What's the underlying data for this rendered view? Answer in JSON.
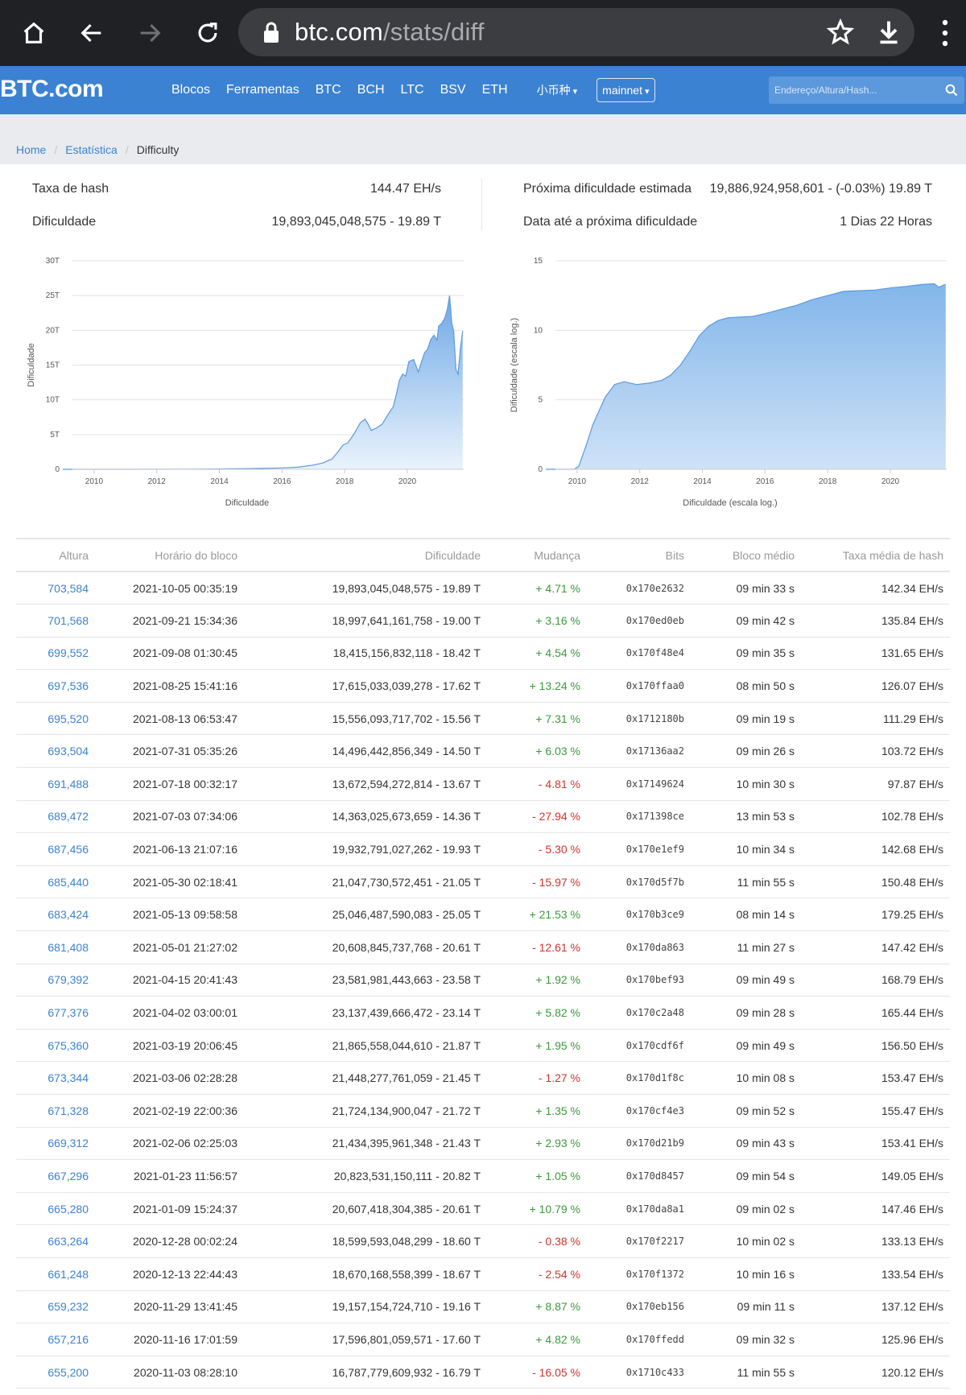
{
  "browser": {
    "url_host": "btc.com",
    "url_path": "/stats/diff"
  },
  "site": {
    "logo": "BTC.com",
    "nav": [
      "Blocos",
      "Ferramentas",
      "BTC",
      "BCH",
      "LTC",
      "BSV",
      "ETH"
    ],
    "coins_dropdown": "小币种",
    "network": "mainnet",
    "search_placeholder": "Endereço/Altura/Hash..."
  },
  "breadcrumb": {
    "home": "Home",
    "stats": "Estatística",
    "current": "Difficulty"
  },
  "stats": {
    "hashrate_label": "Taxa de hash",
    "hashrate_value": "144.47 EH/s",
    "difficulty_label": "Dificuldade",
    "difficulty_value": "19,893,045,048,575 - 19.89 T",
    "next_label": "Próxima dificuldade estimada",
    "next_value": "19,886,924,958,601 - (-0.03%) 19.89 T",
    "time_label": "Data até a próxima dificuldade",
    "time_value": "1 Dias 22 Horas"
  },
  "chart_data": [
    {
      "type": "area",
      "xlabel": "Dificuldade",
      "ylabel": "Dificuldade",
      "x_ticks": [
        "2010",
        "2012",
        "2014",
        "2016",
        "2018",
        "2020"
      ],
      "y_ticks": [
        "0",
        "5T",
        "10T",
        "15T",
        "20T",
        "25T",
        "30T"
      ],
      "ylim": [
        0,
        30
      ],
      "x_range": [
        2009.0,
        2021.8
      ],
      "grid": true,
      "series": [
        {
          "x": [
            2009.0,
            2011.0,
            2013.0,
            2014.0,
            2015.0,
            2016.0,
            2016.5,
            2017.0,
            2017.3,
            2017.6,
            2017.8,
            2017.95,
            2018.1,
            2018.3,
            2018.5,
            2018.65,
            2018.75,
            2018.85,
            2019.0,
            2019.2,
            2019.4,
            2019.55,
            2019.65,
            2019.75,
            2019.85,
            2019.95,
            2020.05,
            2020.2,
            2020.35,
            2020.45,
            2020.55,
            2020.65,
            2020.75,
            2020.85,
            2020.95,
            2021.0,
            2021.1,
            2021.2,
            2021.28,
            2021.35,
            2021.42,
            2021.48,
            2021.55,
            2021.62,
            2021.7,
            2021.77
          ],
          "y": [
            0,
            0,
            0.01,
            0.05,
            0.1,
            0.2,
            0.3,
            0.6,
            0.9,
            1.5,
            2.6,
            3.5,
            3.8,
            5.1,
            6.7,
            7.2,
            6.5,
            5.6,
            5.9,
            6.5,
            8.0,
            9.0,
            10.8,
            12.8,
            13.7,
            13.4,
            15.5,
            15.8,
            14.0,
            15.4,
            16.8,
            17.3,
            18.7,
            19.3,
            18.6,
            20.6,
            21.0,
            21.8,
            23.1,
            25.0,
            21.0,
            19.9,
            14.4,
            13.7,
            17.6,
            19.9
          ]
        }
      ]
    },
    {
      "type": "area",
      "xlabel": "Dificuldade (escala log.)",
      "ylabel": "Dificuldade (escala log.)",
      "x_ticks": [
        "2010",
        "2012",
        "2014",
        "2016",
        "2018",
        "2020"
      ],
      "y_ticks": [
        "0",
        "5",
        "10",
        "15"
      ],
      "ylim": [
        0,
        15
      ],
      "x_range": [
        2009.0,
        2021.8
      ],
      "grid": true,
      "series": [
        {
          "x": [
            2009.0,
            2009.9,
            2010.05,
            2010.3,
            2010.5,
            2010.7,
            2010.9,
            2011.2,
            2011.5,
            2011.9,
            2012.3,
            2012.7,
            2013.0,
            2013.3,
            2013.6,
            2013.9,
            2014.2,
            2014.5,
            2014.8,
            2015.2,
            2015.6,
            2016.0,
            2016.5,
            2017.0,
            2017.5,
            2018.0,
            2018.5,
            2019.0,
            2019.5,
            2020.0,
            2020.5,
            2021.0,
            2021.4,
            2021.55,
            2021.7,
            2021.77
          ],
          "y": [
            0,
            0,
            0.2,
            1.8,
            3.2,
            4.2,
            5.2,
            6.1,
            6.3,
            6.1,
            6.2,
            6.4,
            6.8,
            7.5,
            8.5,
            9.6,
            10.3,
            10.7,
            10.9,
            10.95,
            11.0,
            11.2,
            11.5,
            11.8,
            12.2,
            12.5,
            12.8,
            12.85,
            12.9,
            13.05,
            13.15,
            13.3,
            13.35,
            13.1,
            13.25,
            13.3
          ]
        }
      ]
    }
  ],
  "table": {
    "headers": [
      "Altura",
      "Horário do bloco",
      "Dificuldade",
      "Mudança",
      "Bits",
      "Bloco médio",
      "Taxa média de hash"
    ],
    "rows": [
      [
        "703,584",
        "2021-10-05 00:35:19",
        "19,893,045,048,575 - 19.89 T",
        "+ 4.71 %",
        "0x170e2632",
        "09 min 33 s",
        "142.34 EH/s"
      ],
      [
        "701,568",
        "2021-09-21 15:34:36",
        "18,997,641,161,758 - 19.00 T",
        "+ 3.16 %",
        "0x170ed0eb",
        "09 min 42 s",
        "135.84 EH/s"
      ],
      [
        "699,552",
        "2021-09-08 01:30:45",
        "18,415,156,832,118 - 18.42 T",
        "+ 4.54 %",
        "0x170f48e4",
        "09 min 35 s",
        "131.65 EH/s"
      ],
      [
        "697,536",
        "2021-08-25 15:41:16",
        "17,615,033,039,278 - 17.62 T",
        "+ 13.24 %",
        "0x170ffaa0",
        "08 min 50 s",
        "126.07 EH/s"
      ],
      [
        "695,520",
        "2021-08-13 06:53:47",
        "15,556,093,717,702 - 15.56 T",
        "+ 7.31 %",
        "0x1712180b",
        "09 min 19 s",
        "111.29 EH/s"
      ],
      [
        "693,504",
        "2021-07-31 05:35:26",
        "14,496,442,856,349 - 14.50 T",
        "+ 6.03 %",
        "0x17136aa2",
        "09 min 26 s",
        "103.72 EH/s"
      ],
      [
        "691,488",
        "2021-07-18 00:32:17",
        "13,672,594,272,814 - 13.67 T",
        "- 4.81 %",
        "0x17149624",
        "10 min 30 s",
        "97.87 EH/s"
      ],
      [
        "689,472",
        "2021-07-03 07:34:06",
        "14,363,025,673,659 - 14.36 T",
        "- 27.94 %",
        "0x171398ce",
        "13 min 53 s",
        "102.78 EH/s"
      ],
      [
        "687,456",
        "2021-06-13 21:07:16",
        "19,932,791,027,262 - 19.93 T",
        "- 5.30 %",
        "0x170e1ef9",
        "10 min 34 s",
        "142.68 EH/s"
      ],
      [
        "685,440",
        "2021-05-30 02:18:41",
        "21,047,730,572,451 - 21.05 T",
        "- 15.97 %",
        "0x170d5f7b",
        "11 min 55 s",
        "150.48 EH/s"
      ],
      [
        "683,424",
        "2021-05-13 09:58:58",
        "25,046,487,590,083 - 25.05 T",
        "+ 21.53 %",
        "0x170b3ce9",
        "08 min 14 s",
        "179.25 EH/s"
      ],
      [
        "681,408",
        "2021-05-01 21:27:02",
        "20,608,845,737,768 - 20.61 T",
        "- 12.61 %",
        "0x170da863",
        "11 min 27 s",
        "147.42 EH/s"
      ],
      [
        "679,392",
        "2021-04-15 20:41:43",
        "23,581,981,443,663 - 23.58 T",
        "+ 1.92 %",
        "0x170bef93",
        "09 min 49 s",
        "168.79 EH/s"
      ],
      [
        "677,376",
        "2021-04-02 03:00:01",
        "23,137,439,666,472 - 23.14 T",
        "+ 5.82 %",
        "0x170c2a48",
        "09 min 28 s",
        "165.44 EH/s"
      ],
      [
        "675,360",
        "2021-03-19 20:06:45",
        "21,865,558,044,610 - 21.87 T",
        "+ 1.95 %",
        "0x170cdf6f",
        "09 min 49 s",
        "156.50 EH/s"
      ],
      [
        "673,344",
        "2021-03-06 02:28:28",
        "21,448,277,761,059 - 21.45 T",
        "- 1.27 %",
        "0x170d1f8c",
        "10 min 08 s",
        "153.47 EH/s"
      ],
      [
        "671,328",
        "2021-02-19 22:00:36",
        "21,724,134,900,047 - 21.72 T",
        "+ 1.35 %",
        "0x170cf4e3",
        "09 min 52 s",
        "155.47 EH/s"
      ],
      [
        "669,312",
        "2021-02-06 02:25:03",
        "21,434,395,961,348 - 21.43 T",
        "+ 2.93 %",
        "0x170d21b9",
        "09 min 43 s",
        "153.41 EH/s"
      ],
      [
        "667,296",
        "2021-01-23 11:56:57",
        "20,823,531,150,111 - 20.82 T",
        "+ 1.05 %",
        "0x170d8457",
        "09 min 54 s",
        "149.05 EH/s"
      ],
      [
        "665,280",
        "2021-01-09 15:24:37",
        "20,607,418,304,385 - 20.61 T",
        "+ 10.79 %",
        "0x170da8a1",
        "09 min 02 s",
        "147.46 EH/s"
      ],
      [
        "663,264",
        "2020-12-28 00:02:24",
        "18,599,593,048,299 - 18.60 T",
        "- 0.38 %",
        "0x170f2217",
        "10 min 02 s",
        "133.13 EH/s"
      ],
      [
        "661,248",
        "2020-12-13 22:44:43",
        "18,670,168,558,399 - 18.67 T",
        "- 2.54 %",
        "0x170f1372",
        "10 min 16 s",
        "133.54 EH/s"
      ],
      [
        "659,232",
        "2020-11-29 13:41:45",
        "19,157,154,724,710 - 19.16 T",
        "+ 8.87 %",
        "0x170eb156",
        "09 min 11 s",
        "137.12 EH/s"
      ],
      [
        "657,216",
        "2020-11-16 17:01:59",
        "17,596,801,059,571 - 17.60 T",
        "+ 4.82 %",
        "0x170ffedd",
        "09 min 32 s",
        "125.96 EH/s"
      ],
      [
        "655,200",
        "2020-11-03 08:28:10",
        "16,787,779,609,932 - 16.79 T",
        "- 16.05 %",
        "0x1710c433",
        "11 min 55 s",
        "120.12 EH/s"
      ]
    ]
  }
}
